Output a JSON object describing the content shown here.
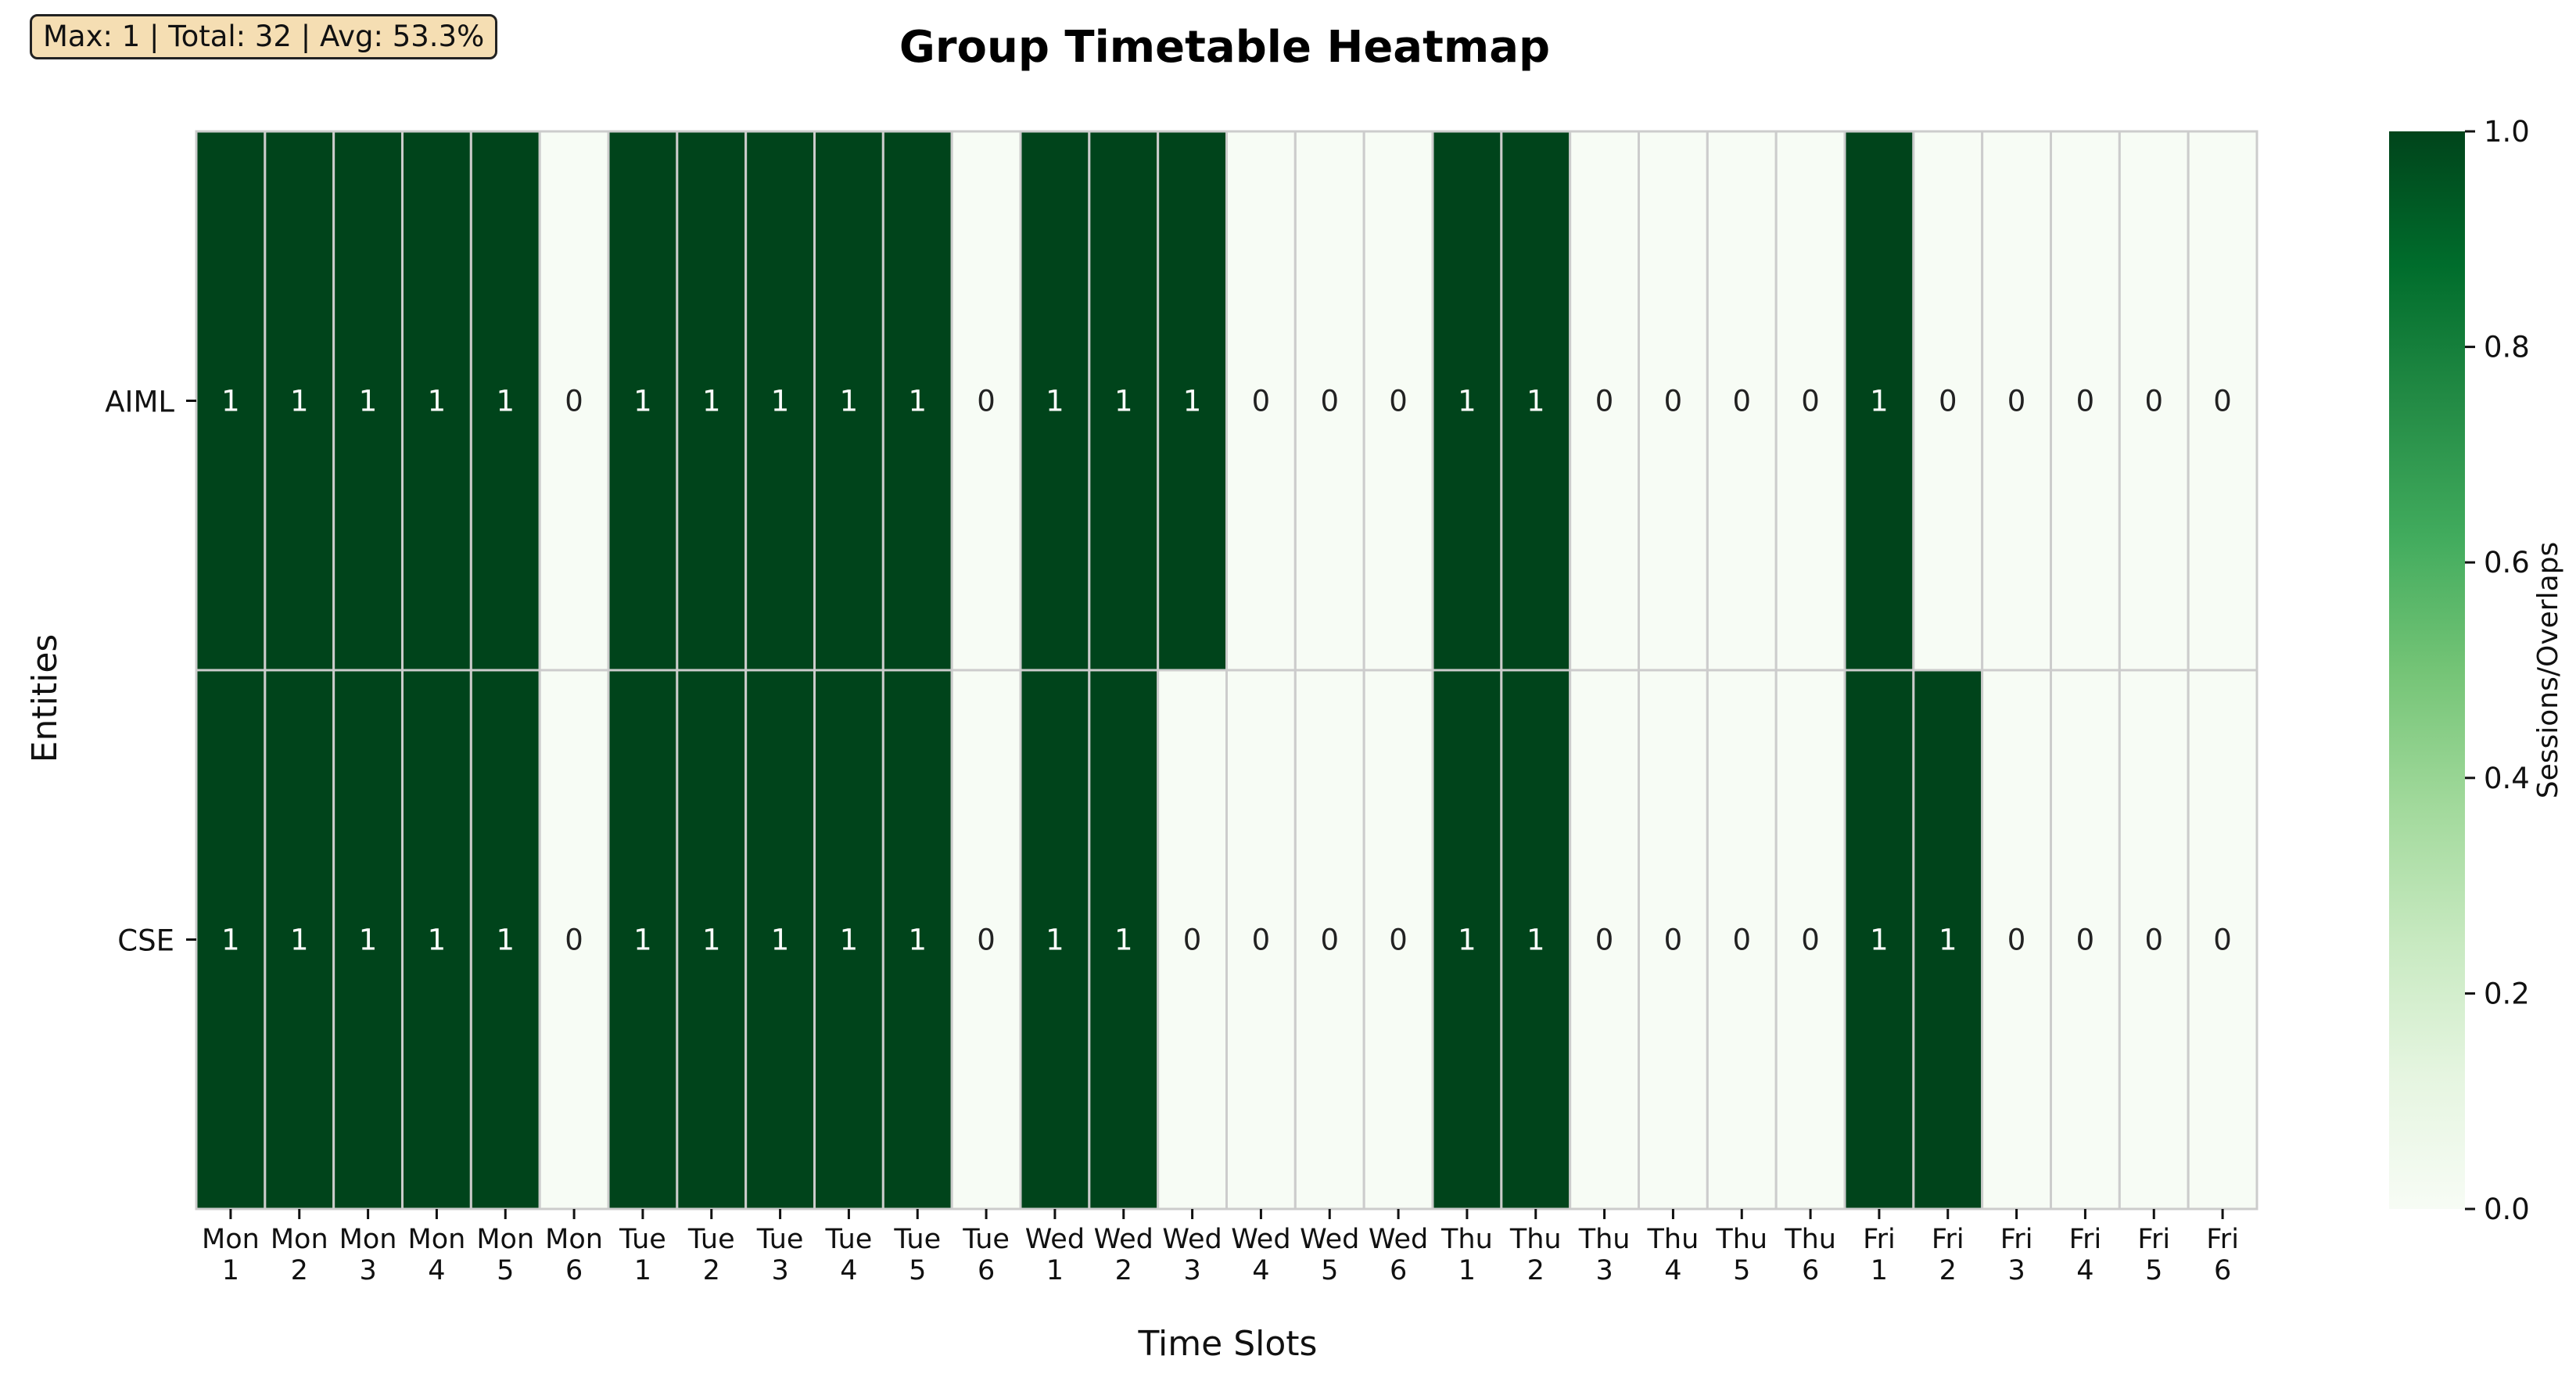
{
  "stats": "Max: 1 | Total: 32 | Avg: 53.3%",
  "chart_data": {
    "type": "heatmap",
    "title": "Group Timetable Heatmap",
    "xlabel": "Time Slots",
    "ylabel": "Entities",
    "colorbar_label": "Sessions/Overlaps",
    "colormap": "Greens",
    "vmin": 0,
    "vmax": 1,
    "colorbar_ticks": [
      "0.0",
      "0.2",
      "0.4",
      "0.6",
      "0.8",
      "1.0"
    ],
    "grid": true,
    "x": [
      "Mon 1",
      "Mon 2",
      "Mon 3",
      "Mon 4",
      "Mon 5",
      "Mon 6",
      "Tue 1",
      "Tue 2",
      "Tue 3",
      "Tue 4",
      "Tue 5",
      "Tue 6",
      "Wed 1",
      "Wed 2",
      "Wed 3",
      "Wed 4",
      "Wed 5",
      "Wed 6",
      "Thu 1",
      "Thu 2",
      "Thu 3",
      "Thu 4",
      "Thu 5",
      "Thu 6",
      "Fri 1",
      "Fri 2",
      "Fri 3",
      "Fri 4",
      "Fri 5",
      "Fri 6"
    ],
    "y": [
      "AIML",
      "CSE"
    ],
    "values": [
      [
        1,
        1,
        1,
        1,
        1,
        0,
        1,
        1,
        1,
        1,
        1,
        0,
        1,
        1,
        1,
        0,
        0,
        0,
        1,
        1,
        0,
        0,
        0,
        0,
        1,
        0,
        0,
        0,
        0,
        0
      ],
      [
        1,
        1,
        1,
        1,
        1,
        0,
        1,
        1,
        1,
        1,
        1,
        0,
        1,
        1,
        0,
        0,
        0,
        0,
        1,
        1,
        0,
        0,
        0,
        0,
        1,
        1,
        0,
        0,
        0,
        0
      ]
    ],
    "colors": {
      "high": "#00441b",
      "low": "#f7fcf5",
      "cell_border": "#cccccc",
      "text_on_high": "#ffffff",
      "text_on_low": "#222222"
    }
  }
}
